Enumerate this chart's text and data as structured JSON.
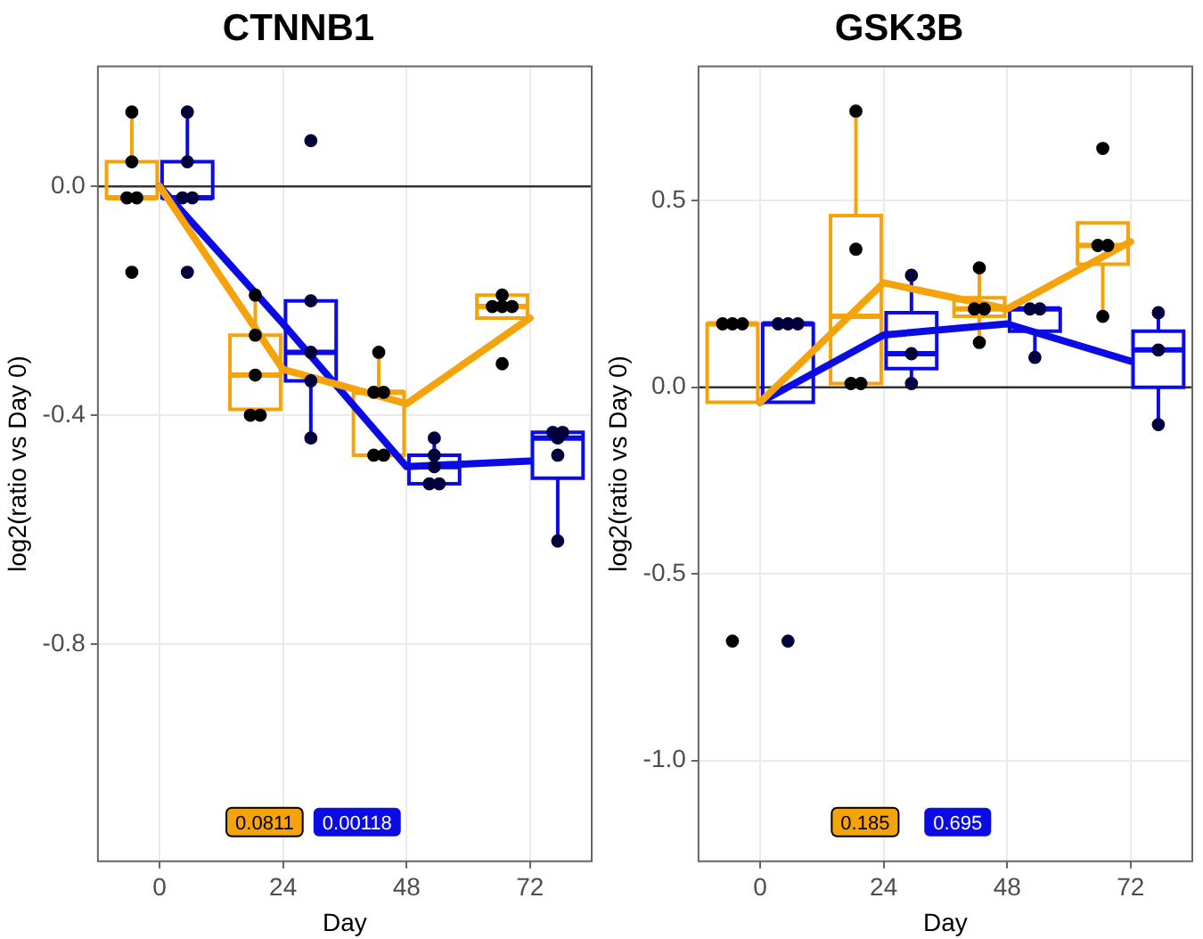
{
  "chart_data": [
    {
      "type": "box",
      "title": "CTNNB1",
      "xlabel": "Day",
      "ylabel": "log2(ratio vs Day 0)",
      "categories": [
        "0",
        "24",
        "48",
        "72"
      ],
      "ylim": [
        -1.18,
        0.21
      ],
      "yticks": [
        {
          "value": 0,
          "label": "0.0"
        },
        -0.4,
        -0.8
      ],
      "grid": true,
      "legend": false,
      "ref_lines": [
        {
          "axis": "y",
          "value": 0,
          "color": "#333333"
        }
      ],
      "annotations": [
        "0.0811",
        "0.00118"
      ],
      "series": [
        {
          "type": "box",
          "color": "#f5a30a",
          "boxes": [
            {
              "low": -0.02,
              "q1": -0.02,
              "median": -0.02,
              "q3": 0.043,
              "high": 0.13
            },
            {
              "low": -0.39,
              "q1": -0.39,
              "median": -0.33,
              "q3": -0.26,
              "high": -0.19
            },
            {
              "low": -0.47,
              "q1": -0.47,
              "median": -0.36,
              "q3": -0.36,
              "high": -0.29
            },
            {
              "low": -0.23,
              "q1": -0.23,
              "median": -0.21,
              "q3": -0.19,
              "high": -0.19
            }
          ]
        },
        {
          "type": "box",
          "color": "#0b0be6",
          "boxes": [
            {
              "low": -0.02,
              "q1": -0.02,
              "median": -0.02,
              "q3": 0.043,
              "high": 0.13
            },
            {
              "low": -0.44,
              "q1": -0.34,
              "median": -0.29,
              "q3": -0.2,
              "high": -0.2
            },
            {
              "low": -0.52,
              "q1": -0.52,
              "median": -0.49,
              "q3": -0.47,
              "high": -0.44
            },
            {
              "low": -0.62,
              "q1": -0.51,
              "median": -0.44,
              "q3": -0.43,
              "high": -0.43
            }
          ]
        },
        {
          "type": "line",
          "color": "#f5a30a",
          "values": [
            0,
            -0.32,
            -0.38,
            -0.23
          ]
        },
        {
          "type": "line",
          "color": "#0b0be6",
          "values": [
            0,
            -0.24,
            -0.49,
            -0.48
          ]
        },
        {
          "type": "scatter",
          "color": "#000000",
          "x": [
            "0",
            "0",
            "0",
            "0",
            "0",
            "24",
            "24",
            "24",
            "24",
            "24",
            "48",
            "48",
            "48",
            "48",
            "48",
            "72",
            "72",
            "72",
            "72",
            "72"
          ],
          "values": [
            0.13,
            0.043,
            -0.02,
            -0.02,
            -0.15,
            -0.19,
            -0.26,
            -0.33,
            -0.4,
            -0.4,
            -0.29,
            -0.36,
            -0.36,
            -0.47,
            -0.47,
            -0.19,
            -0.21,
            -0.21,
            -0.21,
            -0.31
          ]
        },
        {
          "type": "scatter",
          "color": "#00003c",
          "x": [
            "0",
            "0",
            "0",
            "0",
            "0",
            "24",
            "24",
            "24",
            "24",
            "24",
            "48",
            "48",
            "48",
            "48",
            "48",
            "72",
            "72",
            "72",
            "72",
            "72"
          ],
          "values": [
            0.13,
            0.043,
            -0.02,
            -0.02,
            -0.15,
            0.08,
            -0.2,
            -0.29,
            -0.34,
            -0.44,
            -0.44,
            -0.47,
            -0.49,
            -0.52,
            -0.52,
            -0.43,
            -0.43,
            -0.44,
            -0.47,
            -0.62
          ]
        }
      ]
    },
    {
      "type": "box",
      "title": "GSK3B",
      "xlabel": "Day",
      "ylabel": "log2(ratio vs Day 0)",
      "categories": [
        "0",
        "24",
        "48",
        "72"
      ],
      "ylim": [
        -1.27,
        0.86
      ],
      "yticks": [
        {
          "value": 0.5,
          "label": "0.5"
        },
        {
          "value": 0,
          "label": "0.0"
        },
        {
          "value": -0.5,
          "label": "-0.5"
        },
        {
          "value": -1,
          "label": "-1.0"
        }
      ],
      "grid": true,
      "legend": false,
      "ref_lines": [
        {
          "axis": "y",
          "value": 0,
          "color": "#333333"
        }
      ],
      "annotations": [
        "0.185",
        "0.695"
      ],
      "series": [
        {
          "type": "box",
          "color": "#f5a30a",
          "boxes": [
            {
              "low": -0.04,
              "q1": -0.04,
              "median": 0.17,
              "q3": 0.17,
              "high": 0.17
            },
            {
              "low": 0.01,
              "q1": 0.01,
              "median": 0.19,
              "q3": 0.46,
              "high": 0.74
            },
            {
              "low": 0.12,
              "q1": 0.19,
              "median": 0.21,
              "q3": 0.24,
              "high": 0.32
            },
            {
              "low": 0.19,
              "q1": 0.33,
              "median": 0.38,
              "q3": 0.44,
              "high": 0.44
            }
          ]
        },
        {
          "type": "box",
          "color": "#0b0be6",
          "boxes": [
            {
              "low": -0.04,
              "q1": -0.04,
              "median": 0.17,
              "q3": 0.17,
              "high": 0.17
            },
            {
              "low": 0.01,
              "q1": 0.05,
              "median": 0.09,
              "q3": 0.2,
              "high": 0.3
            },
            {
              "low": 0.08,
              "q1": 0.15,
              "median": 0.21,
              "q3": 0.21,
              "high": 0.21
            },
            {
              "low": -0.1,
              "q1": 0,
              "median": 0.1,
              "q3": 0.15,
              "high": 0.2
            }
          ]
        },
        {
          "type": "line",
          "color": "#f5a30a",
          "values": [
            -0.04,
            0.28,
            0.21,
            0.39
          ]
        },
        {
          "type": "line",
          "color": "#0b0be6",
          "values": [
            -0.04,
            0.14,
            0.17,
            0.07
          ]
        },
        {
          "type": "scatter",
          "color": "#000000",
          "x": [
            "0",
            "0",
            "0",
            "0",
            "24",
            "24",
            "24",
            "24",
            "48",
            "48",
            "48",
            "48",
            "72",
            "72",
            "72",
            "72"
          ],
          "values": [
            0.17,
            0.17,
            0.17,
            -0.68,
            0.74,
            0.37,
            0.01,
            0.01,
            0.32,
            0.21,
            0.21,
            0.12,
            0.64,
            0.38,
            0.38,
            0.19
          ]
        },
        {
          "type": "scatter",
          "color": "#00003c",
          "x": [
            "0",
            "0",
            "0",
            "0",
            "24",
            "24",
            "24",
            "48",
            "48",
            "48",
            "72",
            "72",
            "72"
          ],
          "values": [
            0.17,
            0.17,
            0.17,
            -0.68,
            0.3,
            0.09,
            0.01,
            0.21,
            0.21,
            0.08,
            0.2,
            0.1,
            -0.1
          ]
        }
      ]
    }
  ]
}
